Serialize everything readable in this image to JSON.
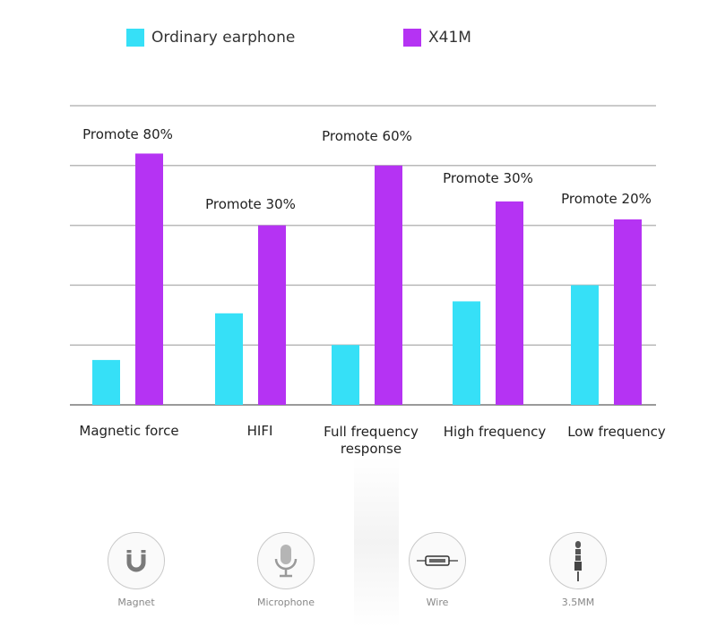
{
  "legend": [
    {
      "label": "Ordinary earphone",
      "color": "#36e0f7"
    },
    {
      "label": "X41M",
      "color": "#b533f3"
    }
  ],
  "chart_data": {
    "type": "bar",
    "title": "",
    "xlabel": "",
    "ylabel": "",
    "ylim": [
      0,
      5
    ],
    "grid": true,
    "categories": [
      "Magnetic force",
      "HIFI",
      "Full frequency response",
      "High frequency",
      "Low frequency"
    ],
    "series": [
      {
        "name": "Ordinary earphone",
        "color": "#36e0f7",
        "values": [
          0.75,
          1.53,
          1.0,
          1.73,
          2.0
        ]
      },
      {
        "name": "X41M",
        "color": "#b533f3",
        "values": [
          4.2,
          3.0,
          4.0,
          3.4,
          3.1
        ]
      }
    ],
    "annotations": [
      "Promote 80%",
      "Promote 30%",
      "Promote 60%",
      "Promote 30%",
      "Promote 20%"
    ]
  },
  "features": [
    {
      "label": "Magnet",
      "icon": "magnet-icon"
    },
    {
      "label": "Microphone",
      "icon": "microphone-icon"
    },
    {
      "label": "Wire",
      "icon": "wire-icon"
    },
    {
      "label": "3.5MM",
      "icon": "audio-jack-icon"
    }
  ]
}
